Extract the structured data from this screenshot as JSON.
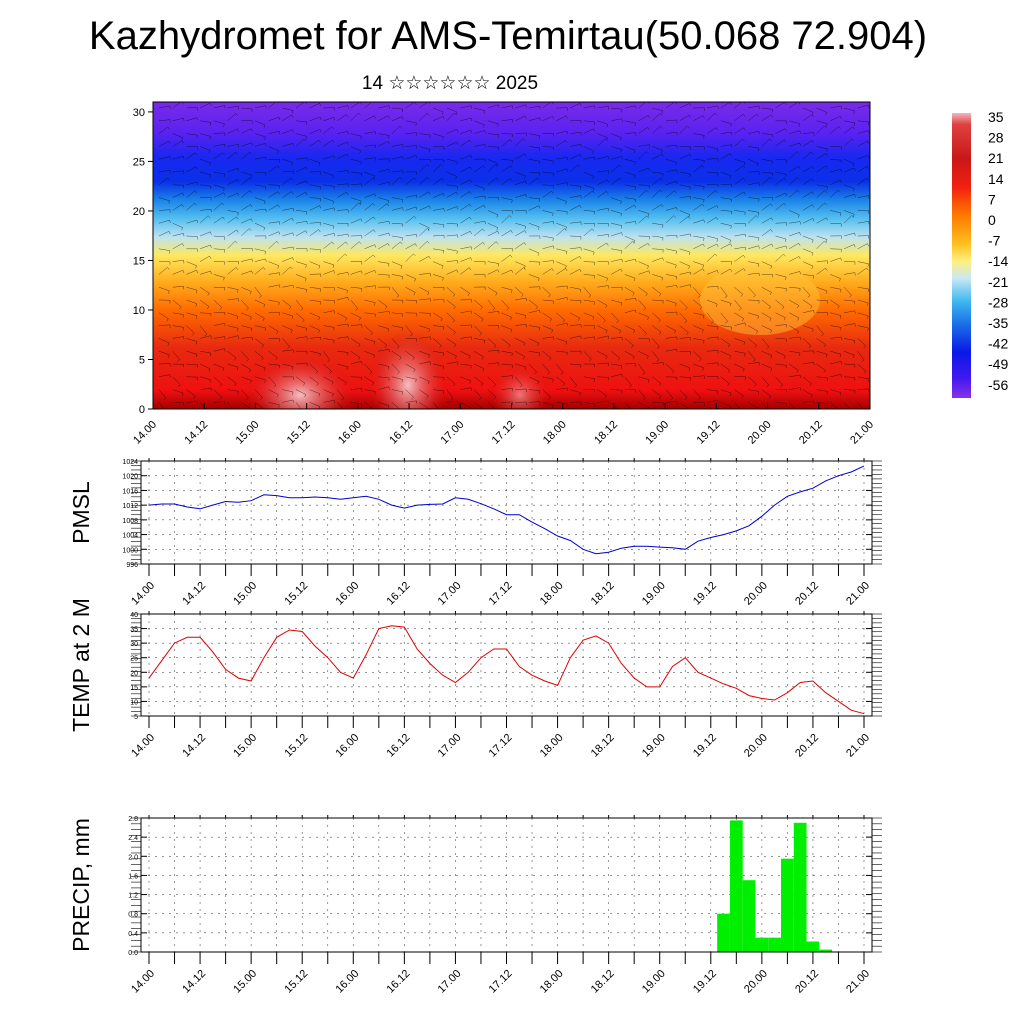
{
  "title": "Kazhydromet for AMS-Temirtau(50.068 72.904)",
  "subtitle": "14 ☆☆☆☆☆☆ 2025",
  "chart_data": [
    {
      "type": "heatmap",
      "panel": "cross-section",
      "x_ticks": [
        "14.00",
        "14.12",
        "15.00",
        "15.12",
        "16.00",
        "16.12",
        "17.00",
        "17.12",
        "18.00",
        "18.12",
        "19.00",
        "19.12",
        "20.00",
        "20.12",
        "21.00"
      ],
      "y_ticks": [
        "0",
        "5",
        "10",
        "15",
        "20",
        "25",
        "30"
      ],
      "ylim": [
        0,
        31
      ],
      "colorbar_labels": [
        "35",
        "28",
        "21",
        "14",
        "7",
        "0",
        "-7",
        "-14",
        "-21",
        "-28",
        "-35",
        "-42",
        "-49",
        "-56"
      ],
      "colorbar_range": [
        -60,
        38
      ],
      "overlay": "wind barbs"
    },
    {
      "type": "line",
      "panel": "pmsl",
      "ylabel": "PMSL",
      "y_ticks": [
        "1024",
        "1020",
        "1016",
        "1012",
        "1008",
        "1004",
        "1000",
        "996"
      ],
      "ylim": [
        996,
        1024
      ],
      "x_ticks": [
        "14.00",
        "14.12",
        "15.00",
        "15.12",
        "16.00",
        "16.12",
        "17.00",
        "17.12",
        "18.00",
        "18.12",
        "19.00",
        "19.12",
        "20.00",
        "20.12",
        "21.00"
      ],
      "color": "#0000cc",
      "values": [
        1012,
        1012.3,
        1012.3,
        1011.5,
        1011,
        1012,
        1013,
        1012.8,
        1013.2,
        1014.8,
        1014.6,
        1014,
        1014,
        1014.2,
        1014,
        1013.6,
        1014,
        1014.4,
        1013.6,
        1012,
        1011.2,
        1012,
        1012.2,
        1012.3,
        1014,
        1013.6,
        1012.4,
        1011,
        1009.4,
        1009.4,
        1007.4,
        1005.6,
        1003.6,
        1002.4,
        1000,
        998.8,
        999.2,
        1000.3,
        1000.8,
        1000.8,
        1000.6,
        1000.4,
        1000,
        1002.2,
        1003.2,
        1004,
        1005,
        1006.4,
        1009,
        1012,
        1014.4,
        1015.6,
        1016.6,
        1018.6,
        1020,
        1021,
        1022.6
      ]
    },
    {
      "type": "line",
      "panel": "temp",
      "ylabel": "TEMP at 2 M",
      "y_ticks": [
        "40",
        "35",
        "30",
        "25",
        "20",
        "15",
        "10",
        "5"
      ],
      "ylim": [
        5,
        40
      ],
      "x_ticks": [
        "14.00",
        "14.12",
        "15.00",
        "15.12",
        "16.00",
        "16.12",
        "17.00",
        "17.12",
        "18.00",
        "18.12",
        "19.00",
        "19.12",
        "20.00",
        "20.12",
        "21.00"
      ],
      "color": "#dd0000",
      "values": [
        18,
        24,
        30,
        32,
        32,
        27,
        21,
        18,
        17,
        25,
        32,
        34.5,
        34,
        29,
        25,
        20,
        18,
        26,
        35,
        36,
        35.5,
        28,
        23,
        19,
        16.5,
        20,
        25,
        28,
        28,
        22,
        19,
        17,
        15.5,
        25,
        31,
        32.5,
        30,
        23,
        18,
        15,
        15,
        22,
        25,
        20,
        18,
        16,
        14.5,
        12,
        11,
        10.5,
        13,
        16.5,
        17,
        13,
        10,
        7,
        5.8
      ]
    },
    {
      "type": "bar",
      "panel": "precip",
      "ylabel": "PRECIP, mm",
      "y_ticks": [
        "2.8",
        "2.4",
        "2.0",
        "1.6",
        "1.2",
        "0.8",
        "0.4",
        "0.0"
      ],
      "ylim": [
        0,
        2.8
      ],
      "x_ticks": [
        "14.00",
        "14.12",
        "15.00",
        "15.12",
        "16.00",
        "16.12",
        "17.00",
        "17.12",
        "18.00",
        "18.12",
        "19.00",
        "19.12",
        "20.00",
        "20.12",
        "21.00"
      ],
      "color": "#00ee00",
      "values": [
        0,
        0,
        0,
        0,
        0,
        0,
        0,
        0,
        0,
        0,
        0,
        0,
        0,
        0,
        0,
        0,
        0,
        0,
        0,
        0,
        0,
        0,
        0,
        0,
        0,
        0,
        0,
        0,
        0,
        0,
        0,
        0,
        0,
        0,
        0,
        0,
        0,
        0,
        0,
        0,
        0,
        0,
        0,
        0,
        0,
        0.8,
        2.75,
        1.5,
        0.3,
        0.3,
        1.95,
        2.7,
        0.22,
        0.05,
        0,
        0,
        0
      ]
    }
  ]
}
